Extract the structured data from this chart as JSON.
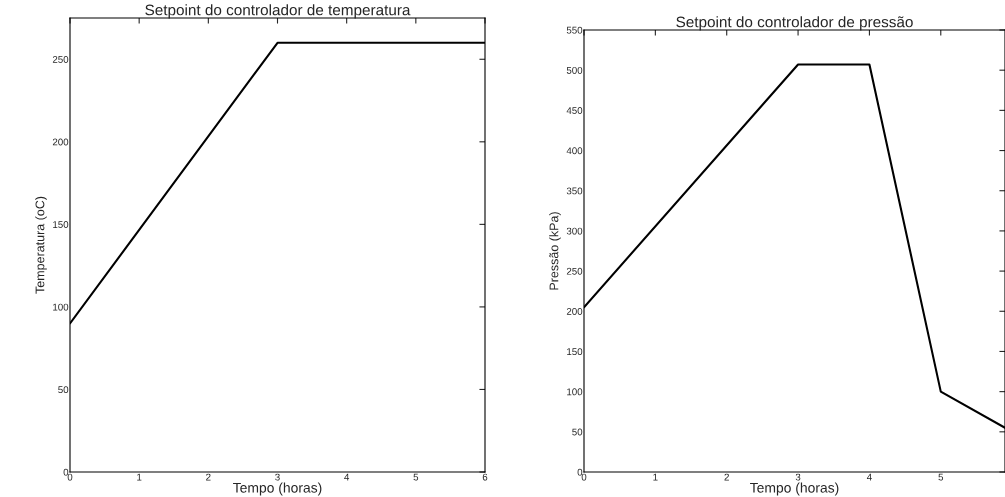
{
  "chart_data": [
    {
      "type": "line",
      "title": "Setpoint do controlador de temperatura",
      "xlabel": "Tempo (horas)",
      "ylabel": "Temperatura (oC)",
      "x": [
        0,
        3,
        6
      ],
      "values": [
        90,
        260,
        260
      ],
      "color": "#000000",
      "xlim": [
        0,
        6
      ],
      "xticks": [
        0,
        1,
        2,
        3,
        4,
        5,
        6
      ],
      "ylim": [
        0,
        275
      ],
      "yticks": [
        0,
        50,
        100,
        150,
        200,
        250
      ],
      "grid": false
    },
    {
      "type": "line",
      "title": "Setpoint do controlador de pressão",
      "xlabel": "Tempo (horas)",
      "ylabel": "Pressão (kPa)",
      "x": [
        0,
        3,
        4,
        5,
        5.9
      ],
      "values": [
        205,
        507,
        507,
        100,
        55
      ],
      "color": "#000000",
      "xlim": [
        0,
        5.9
      ],
      "xticks": [
        0,
        1,
        2,
        3,
        4,
        5
      ],
      "ylim": [
        0,
        550
      ],
      "yticks": [
        0,
        50,
        100,
        150,
        200,
        250,
        300,
        350,
        400,
        450,
        500,
        550
      ],
      "grid": false
    }
  ]
}
